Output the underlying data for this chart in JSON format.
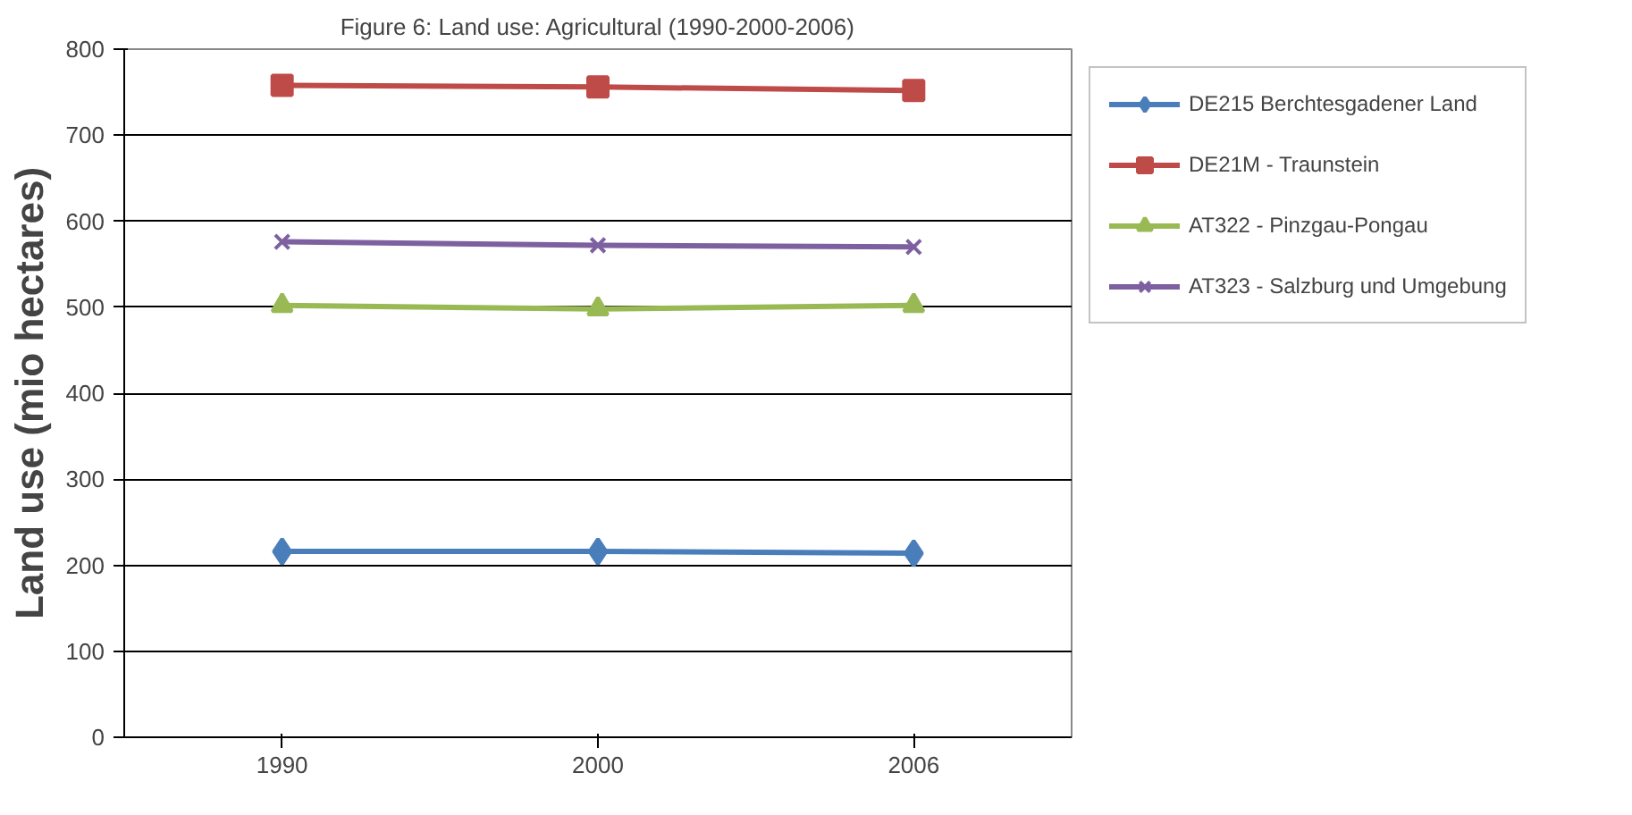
{
  "chart_data": {
    "type": "line",
    "title": "Figure 6: Land use: Agricultural (1990-2000-2006)",
    "ylabel": "Land use (mio hectares)",
    "categories": [
      "1990",
      "2000",
      "2006"
    ],
    "series": [
      {
        "name": "DE215 Berchtesgadener Land",
        "color": "#4a7ebb",
        "marker": "diamond",
        "values": [
          216,
          216,
          214
        ]
      },
      {
        "name": "DE21M - Traunstein",
        "color": "#be4b48",
        "marker": "square",
        "values": [
          758,
          756,
          752
        ]
      },
      {
        "name": "AT322 - Pinzgau-Pongau",
        "color": "#98b954",
        "marker": "triangle",
        "values": [
          502,
          498,
          502
        ]
      },
      {
        "name": "AT323 - Salzburg und Umgebung",
        "color": "#7d60a0",
        "marker": "cross",
        "values": [
          576,
          572,
          570
        ]
      }
    ],
    "ylim": [
      0,
      800
    ],
    "yticks": [
      0,
      100,
      200,
      300,
      400,
      500,
      600,
      700,
      800
    ],
    "grid": "y",
    "legend": "right",
    "line_style": "solid"
  }
}
